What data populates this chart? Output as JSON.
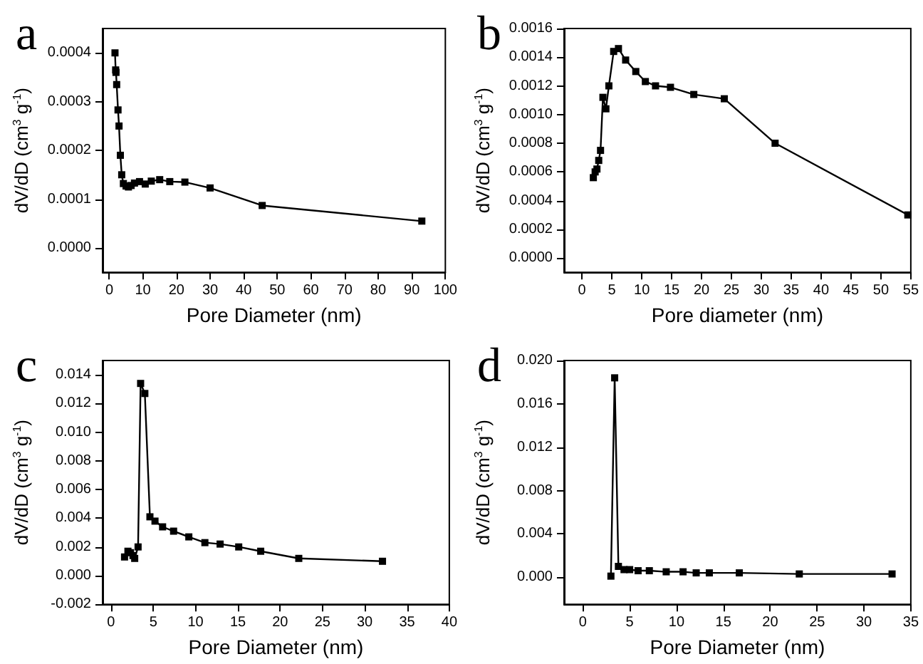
{
  "chart_data": [
    {
      "type": "line",
      "title": "a",
      "xlabel": "Pore Diameter (nm)",
      "ylabel": "dV/dD (cm$^{3}$ g$^{-1}$)",
      "marker": "square",
      "line_style": "solid",
      "grid": false,
      "xlim": [
        -2,
        100
      ],
      "xticks": [
        0,
        10,
        20,
        30,
        40,
        50,
        60,
        70,
        80,
        90,
        100
      ],
      "ylim": [
        -5e-05,
        0.00045
      ],
      "yticks": [
        {
          "value": 0,
          "label": "0.0000"
        },
        0.0001,
        0.0002,
        0.0003,
        0.0004
      ],
      "series": [
        {
          "color": "#000000",
          "x": [
            1.7,
            1.9,
            2.0,
            2.2,
            2.6,
            2.9,
            3.3,
            3.7,
            4.2,
            5,
            5.7,
            6.5,
            7.5,
            9,
            10.7,
            12.5,
            15,
            18,
            22.5,
            30,
            45.5,
            93
          ],
          "values": [
            0.0004,
            0.000365,
            0.00036,
            0.000335,
            0.000283,
            0.00025,
            0.00019,
            0.00015,
            0.000132,
            0.000127,
            0.000125,
            0.000128,
            0.000133,
            0.000136,
            0.000131,
            0.000137,
            0.00014,
            0.000136,
            0.000135,
            0.000123,
            8.7e-05,
            5.5e-05
          ]
        }
      ]
    },
    {
      "type": "line",
      "title": "b",
      "xlabel": "Pore diameter (nm)",
      "ylabel": "dV/dD (cm$^{3}$ g$^{-1}$)",
      "marker": "square",
      "line_style": "solid",
      "grid": false,
      "xlim": [
        -3,
        55
      ],
      "xticks": [
        0,
        5,
        10,
        15,
        20,
        25,
        30,
        35,
        40,
        45,
        50,
        55
      ],
      "ylim": [
        -0.0001,
        0.0016
      ],
      "yticks": [
        {
          "value": 0,
          "label": "0.0000"
        },
        0.0002,
        0.0004,
        0.0006,
        0.0008,
        {
          "value": 0.001,
          "label": "0.0010"
        },
        0.0012,
        0.0014,
        {
          "value": 0.0016,
          "label": "0.0016"
        }
      ],
      "series": [
        {
          "color": "#000000",
          "x": [
            1.9,
            2.2,
            2.5,
            2.8,
            3.1,
            3.5,
            4.0,
            4.5,
            5.3,
            6.1,
            7.3,
            9,
            10.6,
            12.3,
            14.8,
            18.7,
            23.8,
            32.3,
            54.5
          ],
          "values": [
            0.00056,
            0.0006,
            0.00062,
            0.00068,
            0.00075,
            0.00112,
            0.00104,
            0.0012,
            0.00144,
            0.00146,
            0.00138,
            0.0013,
            0.00123,
            0.0012,
            0.00119,
            0.00114,
            0.00111,
            0.0008,
            0.0003
          ]
        }
      ]
    },
    {
      "type": "line",
      "title": "c",
      "xlabel": "Pore Diameter (nm)",
      "ylabel": "dV/dD (cm$^{3}$ g$^{-1}$)",
      "marker": "square",
      "line_style": "solid",
      "grid": false,
      "xlim": [
        -1,
        40
      ],
      "xticks": [
        0,
        5,
        10,
        15,
        20,
        25,
        30,
        35,
        40
      ],
      "ylim": [
        -0.002,
        0.015
      ],
      "yticks": [
        {
          "value": -0.002,
          "label": "-0.002"
        },
        {
          "value": 0,
          "label": "0.000"
        },
        0.002,
        0.004,
        0.006,
        0.008,
        {
          "value": 0.01,
          "label": "0.010"
        },
        0.012,
        0.014
      ],
      "series": [
        {
          "color": "#000000",
          "x": [
            1.6,
            2.0,
            2.3,
            2.6,
            2.8,
            3.2,
            3.5,
            4.0,
            4.6,
            5.2,
            6.1,
            7.4,
            9.2,
            11.1,
            12.9,
            15.1,
            17.7,
            22.2,
            32.1
          ],
          "values": [
            0.0013,
            0.0017,
            0.0016,
            0.0014,
            0.0012,
            0.002,
            0.0134,
            0.0127,
            0.0041,
            0.0038,
            0.0034,
            0.0031,
            0.0027,
            0.0023,
            0.0022,
            0.002,
            0.0017,
            0.0012,
            0.001
          ]
        }
      ]
    },
    {
      "type": "line",
      "title": "d",
      "xlabel": "Pore Diameter (nm)",
      "ylabel": "dV/dD (cm$^{3}$ g$^{-1}$)",
      "marker": "square",
      "line_style": "solid",
      "grid": false,
      "xlim": [
        -2,
        35
      ],
      "xticks": [
        0,
        5,
        10,
        15,
        20,
        25,
        30,
        35
      ],
      "ylim": [
        -0.0025,
        0.02
      ],
      "yticks": [
        {
          "value": 0,
          "label": "0.000"
        },
        0.004,
        0.008,
        0.012,
        0.016,
        {
          "value": 0.02,
          "label": "0.020"
        }
      ],
      "series": [
        {
          "color": "#000000",
          "x": [
            3.0,
            3.4,
            3.8,
            4.4,
            5.0,
            5.9,
            7.1,
            8.9,
            10.7,
            12.1,
            13.5,
            16.7,
            23.1,
            33.0
          ],
          "values": [
            0.0001,
            0.0184,
            0.001,
            0.0007,
            0.0007,
            0.0006,
            0.0006,
            0.0005,
            0.0005,
            0.0004,
            0.0004,
            0.0004,
            0.0003,
            0.0003
          ]
        }
      ]
    }
  ]
}
